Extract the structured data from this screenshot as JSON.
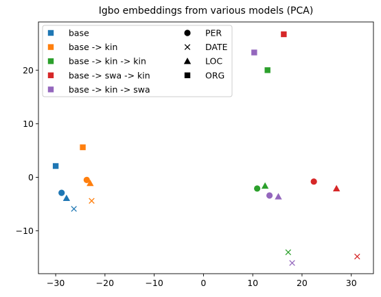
{
  "chart_data": {
    "type": "scatter",
    "title": "Igbo embeddings from various models (PCA)",
    "xlabel": "",
    "ylabel": "",
    "xlim": [
      -33.5,
      34.5
    ],
    "ylim": [
      -18,
      29
    ],
    "xticks": [
      -30,
      -20,
      -10,
      0,
      10,
      20,
      30
    ],
    "yticks": [
      -10,
      0,
      10,
      20
    ],
    "grid": false,
    "legend_placement": "upper-left",
    "model_legend": [
      {
        "label": "base",
        "color": "#1f77b4"
      },
      {
        "label": "base -> kin",
        "color": "#ff7f0e"
      },
      {
        "label": "base -> kin -> kin",
        "color": "#2ca02c"
      },
      {
        "label": "base -> swa -> kin",
        "color": "#d62728"
      },
      {
        "label": "base -> kin -> swa",
        "color": "#9467bd"
      }
    ],
    "entity_legend": [
      {
        "label": "PER",
        "marker": "circle"
      },
      {
        "label": "DATE",
        "marker": "x"
      },
      {
        "label": "LOC",
        "marker": "triangle"
      },
      {
        "label": "ORG",
        "marker": "square"
      }
    ],
    "points": [
      {
        "series": "base",
        "entity": "PER",
        "x": -28.8,
        "y": -2.9
      },
      {
        "series": "base",
        "entity": "DATE",
        "x": -26.3,
        "y": -5.9
      },
      {
        "series": "base",
        "entity": "LOC",
        "x": -27.8,
        "y": -3.9
      },
      {
        "series": "base",
        "entity": "ORG",
        "x": -30.0,
        "y": 2.1
      },
      {
        "series": "base -> kin",
        "entity": "PER",
        "x": -23.7,
        "y": -0.5
      },
      {
        "series": "base -> kin",
        "entity": "DATE",
        "x": -22.7,
        "y": -4.4
      },
      {
        "series": "base -> kin",
        "entity": "LOC",
        "x": -23.0,
        "y": -1.1
      },
      {
        "series": "base -> kin",
        "entity": "ORG",
        "x": -24.5,
        "y": 5.6
      },
      {
        "series": "base -> kin -> kin",
        "entity": "PER",
        "x": 10.9,
        "y": -2.1
      },
      {
        "series": "base -> kin -> kin",
        "entity": "DATE",
        "x": 17.2,
        "y": -14.0
      },
      {
        "series": "base -> kin -> kin",
        "entity": "LOC",
        "x": 12.5,
        "y": -1.6
      },
      {
        "series": "base -> kin -> kin",
        "entity": "ORG",
        "x": 13.0,
        "y": 20.0
      },
      {
        "series": "base -> swa -> kin",
        "entity": "PER",
        "x": 22.4,
        "y": -0.8
      },
      {
        "series": "base -> swa -> kin",
        "entity": "DATE",
        "x": 31.2,
        "y": -14.8
      },
      {
        "series": "base -> swa -> kin",
        "entity": "LOC",
        "x": 27.0,
        "y": -2.1
      },
      {
        "series": "base -> swa -> kin",
        "entity": "ORG",
        "x": 16.3,
        "y": 26.7
      },
      {
        "series": "base -> kin -> swa",
        "entity": "PER",
        "x": 13.4,
        "y": -3.4
      },
      {
        "series": "base -> kin -> swa",
        "entity": "DATE",
        "x": 18.0,
        "y": -16.0
      },
      {
        "series": "base -> kin -> swa",
        "entity": "LOC",
        "x": 15.2,
        "y": -3.6
      },
      {
        "series": "base -> kin -> swa",
        "entity": "ORG",
        "x": 10.3,
        "y": 23.3
      }
    ]
  }
}
